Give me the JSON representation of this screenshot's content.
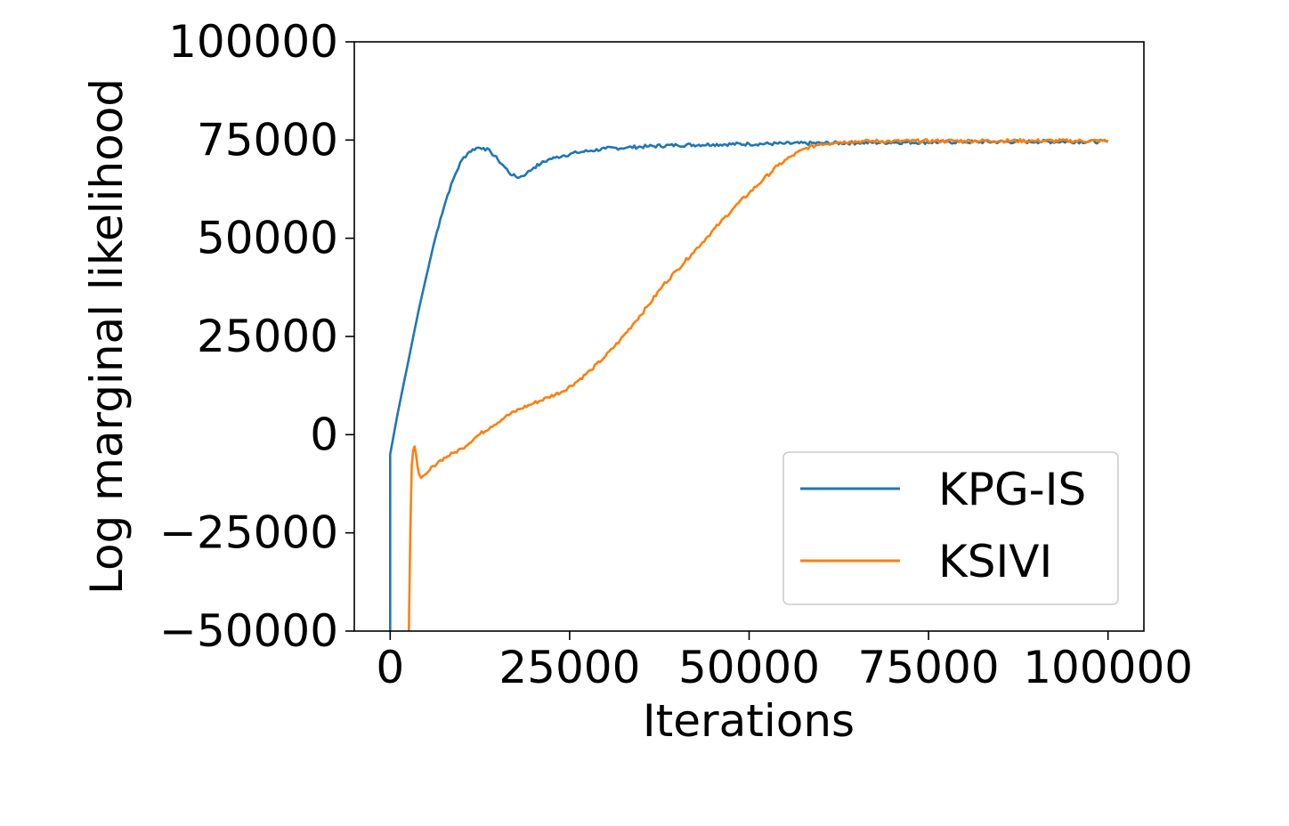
{
  "chart_data": {
    "type": "line",
    "title": "",
    "xlabel": "Iterations",
    "ylabel": "Log marginal likelihood",
    "xlim": [
      -5000,
      105000
    ],
    "ylim": [
      -50000,
      100000
    ],
    "xticks": [
      0,
      25000,
      50000,
      75000,
      100000
    ],
    "xtick_labels": [
      "0",
      "25000",
      "50000",
      "75000",
      "100000"
    ],
    "yticks": [
      -50000,
      -25000,
      0,
      25000,
      50000,
      75000,
      100000
    ],
    "ytick_labels": [
      "−50000",
      "−25000",
      "0",
      "25000",
      "50000",
      "75000",
      "100000"
    ],
    "grid": false,
    "legend_position": "lower-right",
    "series": [
      {
        "name": "KPG-IS",
        "color": "#1f77b4",
        "x": [
          0,
          0,
          200,
          1000,
          2000,
          3000,
          4000,
          5000,
          6000,
          7000,
          8000,
          9000,
          10000,
          11000,
          12000,
          13000,
          14000,
          15000,
          16000,
          17000,
          18000,
          19000,
          20000,
          21000,
          22000,
          23000,
          24000,
          26000,
          28000,
          30000,
          33000,
          36000,
          40000,
          45000,
          50000,
          55000,
          60000,
          65000,
          70000,
          80000,
          90000,
          100000
        ],
        "y": [
          -50000,
          -5000,
          -3000,
          5000,
          14000,
          23000,
          32000,
          40000,
          48000,
          55000,
          61000,
          66000,
          70000,
          72000,
          73000,
          73000,
          72000,
          70000,
          68000,
          66000,
          65500,
          66500,
          68000,
          69000,
          70000,
          70500,
          71000,
          71800,
          72300,
          72800,
          73100,
          73400,
          73700,
          73900,
          74000,
          74100,
          74200,
          74300,
          74400,
          74500,
          74600,
          74600
        ]
      },
      {
        "name": "KSIVI",
        "color": "#ff7f0e",
        "x": [
          2600,
          2800,
          3000,
          3200,
          3400,
          3600,
          3800,
          4000,
          4300,
          4600,
          5000,
          5500,
          6000,
          7000,
          8000,
          9000,
          10000,
          12000,
          14000,
          16000,
          18000,
          20000,
          22000,
          24000,
          26000,
          28000,
          30000,
          32000,
          34000,
          36000,
          38000,
          40000,
          42000,
          44000,
          46000,
          48000,
          50000,
          52000,
          54000,
          56000,
          58000,
          60000,
          62000,
          64000,
          66000,
          70000,
          80000,
          90000,
          100000
        ],
        "y": [
          -50000,
          -25000,
          -8000,
          -4000,
          -3000,
          -5000,
          -8000,
          -10000,
          -11000,
          -10500,
          -10000,
          -9000,
          -8000,
          -6500,
          -5500,
          -4500,
          -3500,
          -500,
          2000,
          4500,
          6500,
          8000,
          9500,
          11000,
          13500,
          16500,
          20000,
          24000,
          28500,
          33000,
          38000,
          42000,
          46000,
          50000,
          54000,
          58000,
          61500,
          65000,
          68500,
          71000,
          73000,
          74000,
          74400,
          74600,
          74700,
          74700,
          74800,
          74800,
          74800
        ]
      }
    ]
  }
}
